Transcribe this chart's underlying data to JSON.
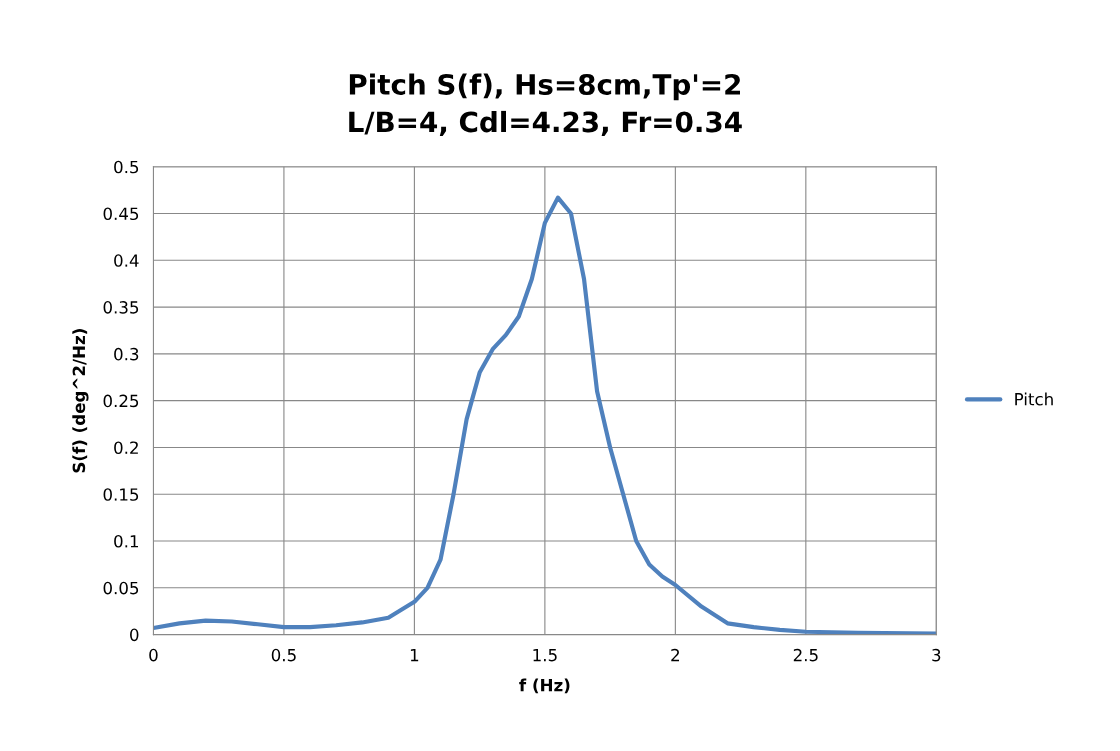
{
  "chart_data": {
    "type": "line",
    "title": "Pitch S(f), Hs=8cm,Tp'=2\nL/B=4, Cdl=4.23, Fr=0.34",
    "xlabel": "f (Hz)",
    "ylabel": "S(f) (deg^2/Hz)",
    "x": [
      0,
      0.1,
      0.2,
      0.3,
      0.4,
      0.5,
      0.6,
      0.7,
      0.8,
      0.9,
      1.0,
      1.05,
      1.1,
      1.15,
      1.2,
      1.25,
      1.3,
      1.35,
      1.4,
      1.45,
      1.5,
      1.55,
      1.6,
      1.65,
      1.7,
      1.75,
      1.8,
      1.85,
      1.9,
      1.95,
      2.0,
      2.1,
      2.2,
      2.3,
      2.4,
      2.5,
      2.7,
      3.0
    ],
    "series": [
      {
        "name": "Pitch",
        "color": "#4f81bd",
        "values": [
          0.007,
          0.012,
          0.015,
          0.014,
          0.011,
          0.008,
          0.008,
          0.01,
          0.013,
          0.018,
          0.035,
          0.05,
          0.08,
          0.15,
          0.23,
          0.28,
          0.305,
          0.32,
          0.34,
          0.38,
          0.44,
          0.467,
          0.45,
          0.38,
          0.26,
          0.2,
          0.15,
          0.1,
          0.075,
          0.062,
          0.053,
          0.03,
          0.012,
          0.008,
          0.005,
          0.003,
          0.002,
          0.001
        ]
      }
    ],
    "xlim": [
      0,
      3
    ],
    "xticks": [
      0,
      0.5,
      1,
      1.5,
      2,
      2.5,
      3
    ],
    "ylim": [
      0,
      0.5
    ],
    "yticks": [
      0,
      0.05,
      0.1,
      0.15,
      0.2,
      0.25,
      0.3,
      0.35,
      0.4,
      0.45,
      0.5
    ],
    "grid": true,
    "legend": "right",
    "marker": "none",
    "line_style": "solid"
  }
}
